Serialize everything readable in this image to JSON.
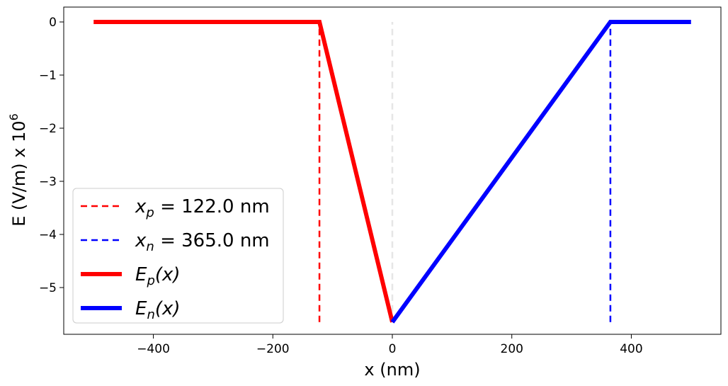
{
  "chart_data": {
    "type": "line",
    "xlabel": "x (nm)",
    "ylabel": "E (V/m) x 10",
    "ylabel_exponent": "6",
    "xlim": [
      -550,
      550
    ],
    "ylim": [
      -5.88,
      0.28
    ],
    "x_ticks": [
      -400,
      -200,
      0,
      200,
      400
    ],
    "x_tick_labels": [
      "−400",
      "−200",
      "0",
      "200",
      "400"
    ],
    "y_ticks": [
      0,
      -1,
      -2,
      -3,
      -4,
      -5
    ],
    "y_tick_labels": [
      "0",
      "−1",
      "−2",
      "−3",
      "−4",
      "−5"
    ],
    "grid": false,
    "legend_position": "lower-left",
    "series": [
      {
        "name_var": "E",
        "name_sub": "p",
        "name_arg": "(x)",
        "style": "solid",
        "color": "#ff0000",
        "x": [
          -500,
          -122,
          0
        ],
        "y": [
          0,
          0,
          -5.65
        ]
      },
      {
        "name_var": "E",
        "name_sub": "n",
        "name_arg": "(x)",
        "style": "solid",
        "color": "#0000ff",
        "x": [
          0,
          365,
          500
        ],
        "y": [
          -5.65,
          0,
          0
        ]
      }
    ],
    "vlines": [
      {
        "name_var": "x",
        "name_sub": "p",
        "name_eq": " = 122.0 nm",
        "x": -122,
        "y": [
          -5.65,
          0
        ],
        "color": "#ff0000",
        "style": "dashed"
      },
      {
        "name_var": "x",
        "name_sub": "n",
        "name_eq": " = 365.0 nm",
        "x": 365,
        "y": [
          -5.65,
          0
        ],
        "color": "#0000ff",
        "style": "dashed"
      }
    ],
    "center_line": {
      "x": 0,
      "y": [
        -5.65,
        0
      ],
      "color": "#e6e6e6",
      "style": "dashed"
    }
  }
}
